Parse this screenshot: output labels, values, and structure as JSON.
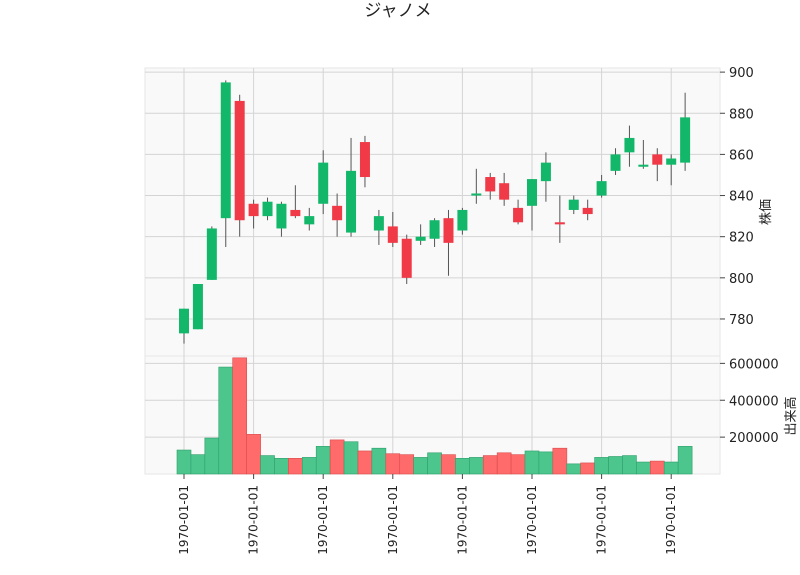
{
  "chart_data": {
    "type": "candlestick",
    "title": "ジャノメ",
    "price_ylabel": "株価",
    "volume_ylabel": "出来高",
    "price_ylim": [
      762,
      902
    ],
    "price_yticks": [
      "780",
      "800",
      "820",
      "840",
      "860",
      "880",
      "900"
    ],
    "volume_ylim": [
      0,
      640000
    ],
    "volume_yticks": [
      "200000",
      "400000",
      "600000"
    ],
    "x_tick_labels": [
      "1970-01-01",
      "1970-01-01",
      "1970-01-01",
      "1970-01-01",
      "1970-01-01",
      "1970-01-01",
      "1970-01-01",
      "1970-01-01"
    ],
    "x_tick_indices": [
      0,
      5,
      10,
      15,
      20,
      25,
      30,
      35
    ],
    "grid": true,
    "colors": {
      "up": "#12b76a",
      "down": "#f03a47",
      "up_volume": "#4cc68d",
      "down_volume": "#ff6b6b",
      "wick": "#555555",
      "grid": "#d4d4d4",
      "panel_bg": "#f9f9f9"
    },
    "candles": [
      {
        "o": 773,
        "h": 785,
        "l": 768,
        "c": 785,
        "v": 130000
      },
      {
        "o": 775,
        "h": 797,
        "l": 775,
        "c": 797,
        "v": 105000
      },
      {
        "o": 799,
        "h": 825,
        "l": 799,
        "c": 824,
        "v": 195000
      },
      {
        "o": 829,
        "h": 896,
        "l": 815,
        "c": 895,
        "v": 580000
      },
      {
        "o": 886,
        "h": 889,
        "l": 820,
        "c": 828,
        "v": 630000
      },
      {
        "o": 836,
        "h": 838,
        "l": 824,
        "c": 830,
        "v": 215000
      },
      {
        "o": 830,
        "h": 839,
        "l": 828,
        "c": 837,
        "v": 100000
      },
      {
        "o": 824,
        "h": 837,
        "l": 820,
        "c": 836,
        "v": 85000
      },
      {
        "o": 833,
        "h": 845,
        "l": 829,
        "c": 830,
        "v": 85000
      },
      {
        "o": 826,
        "h": 834,
        "l": 823,
        "c": 830,
        "v": 90000
      },
      {
        "o": 836,
        "h": 862,
        "l": 831,
        "c": 856,
        "v": 150000
      },
      {
        "o": 835,
        "h": 841,
        "l": 820,
        "c": 828,
        "v": 185000
      },
      {
        "o": 822,
        "h": 868,
        "l": 820,
        "c": 852,
        "v": 175000
      },
      {
        "o": 866,
        "h": 869,
        "l": 844,
        "c": 849,
        "v": 125000
      },
      {
        "o": 823,
        "h": 833,
        "l": 816,
        "c": 830,
        "v": 140000
      },
      {
        "o": 825,
        "h": 832,
        "l": 815,
        "c": 817,
        "v": 110000
      },
      {
        "o": 819,
        "h": 821,
        "l": 797,
        "c": 800,
        "v": 105000
      },
      {
        "o": 818,
        "h": 826,
        "l": 816,
        "c": 820,
        "v": 90000
      },
      {
        "o": 819,
        "h": 829,
        "l": 815,
        "c": 828,
        "v": 115000
      },
      {
        "o": 829,
        "h": 833,
        "l": 801,
        "c": 817,
        "v": 105000
      },
      {
        "o": 823,
        "h": 834,
        "l": 821,
        "c": 833,
        "v": 85000
      },
      {
        "o": 840,
        "h": 853,
        "l": 836,
        "c": 841,
        "v": 90000
      },
      {
        "o": 849,
        "h": 851,
        "l": 838,
        "c": 842,
        "v": 100000
      },
      {
        "o": 846,
        "h": 851,
        "l": 835,
        "c": 838,
        "v": 115000
      },
      {
        "o": 834,
        "h": 838,
        "l": 826,
        "c": 827,
        "v": 105000
      },
      {
        "o": 835,
        "h": 848,
        "l": 823,
        "c": 848,
        "v": 125000
      },
      {
        "o": 847,
        "h": 861,
        "l": 837,
        "c": 856,
        "v": 120000
      },
      {
        "o": 827,
        "h": 840,
        "l": 817,
        "c": 826,
        "v": 140000
      },
      {
        "o": 833,
        "h": 840,
        "l": 831,
        "c": 838,
        "v": 55000
      },
      {
        "o": 834,
        "h": 838,
        "l": 828,
        "c": 831,
        "v": 60000
      },
      {
        "o": 840,
        "h": 850,
        "l": 839,
        "c": 847,
        "v": 90000
      },
      {
        "o": 852,
        "h": 863,
        "l": 850,
        "c": 860,
        "v": 95000
      },
      {
        "o": 861,
        "h": 874,
        "l": 854,
        "c": 868,
        "v": 100000
      },
      {
        "o": 854,
        "h": 867,
        "l": 853,
        "c": 855,
        "v": 65000
      },
      {
        "o": 860,
        "h": 863,
        "l": 847,
        "c": 855,
        "v": 70000
      },
      {
        "o": 855,
        "h": 860,
        "l": 845,
        "c": 858,
        "v": 65000
      },
      {
        "o": 856,
        "h": 890,
        "l": 852,
        "c": 878,
        "v": 150000
      }
    ]
  }
}
